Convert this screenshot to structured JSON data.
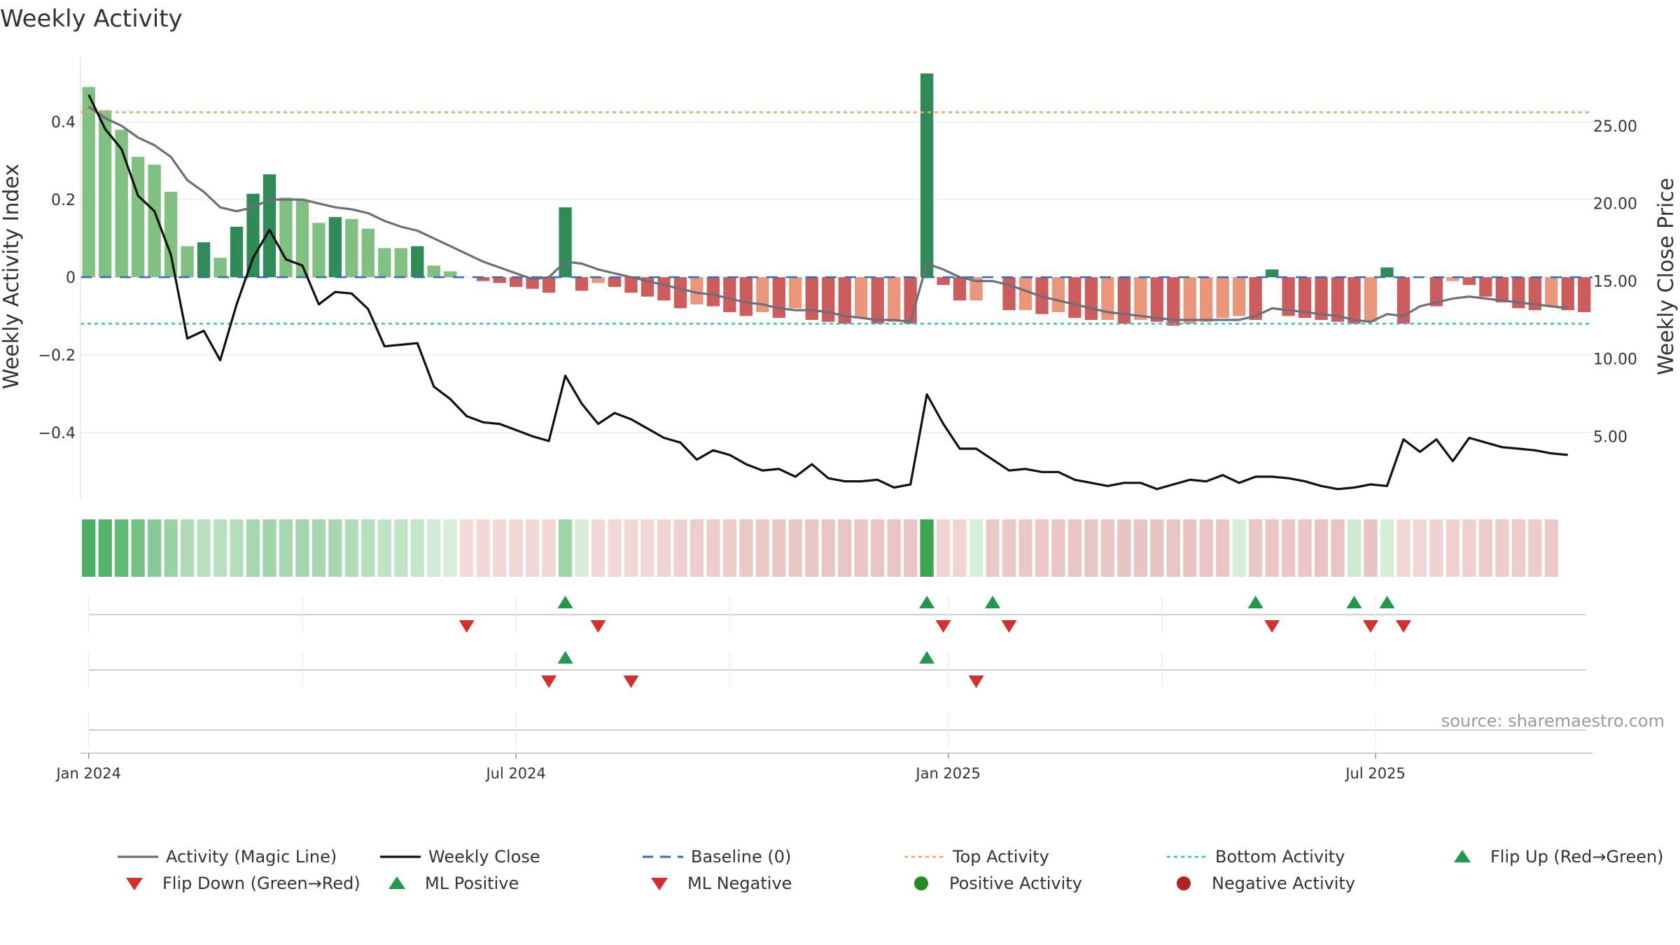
{
  "chart_data": {
    "type": "bar",
    "title": "Weekly Activity",
    "left_axis": {
      "label": "Weekly Activity Index",
      "ylim": [
        -0.57,
        0.57
      ],
      "ticks": [
        0.4,
        0.2,
        0,
        -0.2,
        -0.4
      ],
      "tick_labels": [
        "0.4",
        "0.2",
        "0",
        "−0.2",
        "−0.4"
      ]
    },
    "right_axis": {
      "label": "Weekly Close Price",
      "ylim": [
        1.0,
        29.5
      ],
      "ticks": [
        25,
        20,
        15,
        10,
        5
      ],
      "tick_labels": [
        "25.00",
        "20.00",
        "15.00",
        "10.00",
        "5.00"
      ]
    },
    "x_axis": {
      "start_label": "Jan 2024",
      "ticks": [
        {
          "label": "Jan 2024",
          "week": 0
        },
        {
          "label": "Jul 2024",
          "week": 26
        },
        {
          "label": "Jan 2025",
          "week": 52.3
        },
        {
          "label": "Jul 2025",
          "week": 78.3
        }
      ],
      "weeks": 90
    },
    "activity": [
      0.49,
      0.43,
      0.38,
      0.31,
      0.29,
      0.22,
      0.08,
      0.09,
      0.05,
      0.13,
      0.215,
      0.265,
      0.205,
      0.2,
      0.14,
      0.155,
      0.15,
      0.125,
      0.075,
      0.075,
      0.08,
      0.03,
      0.015,
      0.0,
      -0.01,
      -0.015,
      -0.025,
      -0.03,
      -0.04,
      0.18,
      -0.035,
      -0.015,
      -0.025,
      -0.04,
      -0.05,
      -0.06,
      -0.08,
      -0.07,
      -0.075,
      -0.09,
      -0.1,
      -0.09,
      -0.105,
      -0.08,
      -0.11,
      -0.115,
      -0.12,
      -0.105,
      -0.12,
      -0.115,
      -0.12,
      0.525,
      -0.02,
      -0.06,
      -0.06,
      0.0,
      -0.085,
      -0.085,
      -0.095,
      -0.09,
      -0.105,
      -0.11,
      -0.11,
      -0.12,
      -0.11,
      -0.115,
      -0.125,
      -0.12,
      -0.115,
      -0.105,
      -0.1,
      -0.11,
      0.02,
      -0.1,
      -0.105,
      -0.11,
      -0.115,
      -0.12,
      -0.115,
      0.025,
      -0.12,
      0.0,
      -0.075,
      -0.01,
      -0.02,
      -0.05,
      -0.065,
      -0.08,
      -0.085,
      -0.075,
      -0.085,
      -0.09
    ],
    "magic_line": [
      0.44,
      0.41,
      0.39,
      0.36,
      0.34,
      0.31,
      0.25,
      0.22,
      0.18,
      0.17,
      0.18,
      0.2,
      0.2,
      0.2,
      0.19,
      0.18,
      0.175,
      0.165,
      0.145,
      0.13,
      0.12,
      0.1,
      0.08,
      0.06,
      0.04,
      0.025,
      0.01,
      -0.005,
      0.0,
      0.04,
      0.035,
      0.02,
      0.01,
      0.0,
      -0.01,
      -0.02,
      -0.03,
      -0.04,
      -0.045,
      -0.055,
      -0.065,
      -0.07,
      -0.08,
      -0.085,
      -0.085,
      -0.09,
      -0.1,
      -0.105,
      -0.11,
      -0.11,
      -0.115,
      0.035,
      0.02,
      0.0,
      -0.01,
      -0.01,
      -0.02,
      -0.035,
      -0.05,
      -0.06,
      -0.07,
      -0.08,
      -0.09,
      -0.095,
      -0.1,
      -0.105,
      -0.11,
      -0.11,
      -0.11,
      -0.11,
      -0.11,
      -0.1,
      -0.08,
      -0.085,
      -0.09,
      -0.095,
      -0.1,
      -0.11,
      -0.115,
      -0.095,
      -0.1,
      -0.075,
      -0.065,
      -0.055,
      -0.05,
      -0.055,
      -0.06,
      -0.065,
      -0.07,
      -0.075,
      -0.08
    ],
    "weekly_close": [
      27.0,
      24.8,
      23.5,
      20.5,
      19.5,
      16.7,
      11.3,
      11.8,
      9.9,
      13.5,
      16.5,
      18.3,
      16.4,
      16.0,
      13.5,
      14.3,
      14.2,
      13.2,
      10.8,
      10.9,
      11.0,
      8.2,
      7.4,
      6.3,
      5.9,
      5.8,
      5.4,
      5.0,
      4.7,
      8.9,
      7.1,
      5.8,
      6.5,
      6.1,
      5.5,
      4.9,
      4.6,
      3.5,
      4.1,
      3.8,
      3.2,
      2.8,
      2.9,
      2.4,
      3.2,
      2.3,
      2.1,
      2.1,
      2.2,
      1.7,
      1.9,
      7.7,
      5.8,
      4.2,
      4.2,
      3.5,
      2.8,
      2.9,
      2.7,
      2.7,
      2.2,
      2.0,
      1.8,
      2.0,
      2.0,
      1.6,
      1.9,
      2.2,
      2.1,
      2.5,
      2.0,
      2.4,
      2.4,
      2.3,
      2.1,
      1.8,
      1.6,
      1.7,
      1.9,
      1.8,
      4.8,
      4.0,
      4.8,
      3.4,
      4.9,
      4.6,
      4.3,
      4.2,
      4.1,
      3.9,
      3.8
    ],
    "reference_lines": {
      "baseline": 0,
      "top_activity": 0.425,
      "bottom_activity": -0.12
    },
    "strip_colors": [
      "#4caf63",
      "#55b36b",
      "#5fb874",
      "#74c184",
      "#86c993",
      "#9ad2a5",
      "#aedbb6",
      "#b9e0c0",
      "#b9e0c0",
      "#b6dfbd",
      "#a7d7b0",
      "#a2d5ac",
      "#a7d7b0",
      "#a2d5ac",
      "#a7d7b0",
      "#a7d7b0",
      "#b1dcb9",
      "#b6dfbd",
      "#bfe3c5",
      "#c1e4c7",
      "#c6e6cb",
      "#d3ecd7",
      "#d9efdc",
      "#f5dada",
      "#f2d7d7",
      "#f2d7d7",
      "#f2d7d7",
      "#f2d7d7",
      "#f2d7d7",
      "#9fd3a9",
      "#d5edd9",
      "#f2d7d7",
      "#f2d7d7",
      "#f2d7d7",
      "#f2d7d7",
      "#f0d3d3",
      "#efd1d1",
      "#edcdcd",
      "#edcdcd",
      "#eccbcb",
      "#ebc9c9",
      "#ebc9c9",
      "#eac7c7",
      "#eac7c7",
      "#e9c5c5",
      "#e9c5c5",
      "#e9c5c5",
      "#e9c5c5",
      "#e9c5c5",
      "#e9c5c5",
      "#e9c5c5",
      "#3ea653",
      "#f0d3d3",
      "#f0d3d3",
      "#d8efdc",
      "#ecc9c9",
      "#ecc9c9",
      "#ebc7c7",
      "#ebc7c7",
      "#eac5c5",
      "#eac5c5",
      "#eac5c5",
      "#eac5c5",
      "#e9c4c4",
      "#e9c4c4",
      "#e9c4c4",
      "#e9c4c4",
      "#e9c4c4",
      "#e9c4c4",
      "#eac6c6",
      "#d5edd9",
      "#eac6c6",
      "#eac6c6",
      "#eac6c6",
      "#eac6c6",
      "#e9c4c4",
      "#e9c4c4",
      "#cfe9d3",
      "#e9c4c4",
      "#d5edd9",
      "#f2d6d6",
      "#f2d6d6",
      "#f0d2d2",
      "#efcfcf",
      "#efcfcf",
      "#edcbcb",
      "#edcbcb",
      "#edcbcb",
      "#edcbcb",
      "#ecc9c9"
    ],
    "flip_up": [
      29,
      51,
      55,
      71,
      77,
      79
    ],
    "flip_down": [
      23,
      31,
      52,
      56,
      72,
      78,
      80
    ],
    "ml_positive": [
      29,
      51
    ],
    "ml_negative": [
      28,
      33,
      54
    ],
    "legend": [
      {
        "label": "Activity (Magic Line)",
        "kind": "line",
        "color": "#6e6e78"
      },
      {
        "label": "Weekly Close",
        "kind": "line",
        "color": "#111111"
      },
      {
        "label": "Baseline (0)",
        "kind": "dash",
        "color": "#2f6fb7"
      },
      {
        "label": "Top Activity",
        "kind": "dot",
        "color": "#f2a25c"
      },
      {
        "label": "Bottom Activity",
        "kind": "dot",
        "color": "#27c3cf"
      },
      {
        "label": "Flip Up (Red→Green)",
        "kind": "up",
        "color": "#22994a"
      },
      {
        "label": "Flip Down (Green→Red)",
        "kind": "down",
        "color": "#d32f2f"
      },
      {
        "label": "ML Positive",
        "kind": "up",
        "color": "#22994a"
      },
      {
        "label": "ML Negative",
        "kind": "down",
        "color": "#d32f2f"
      },
      {
        "label": "Positive Activity",
        "kind": "circle",
        "color": "#228b22"
      },
      {
        "label": "Negative Activity",
        "kind": "circle",
        "color": "#b22222"
      }
    ],
    "source": "source: sharemaestro.com",
    "colors": {
      "bar_strong_green": "#2e8b57",
      "bar_light_green": "#80c080",
      "bar_strong_red": "#cd5c5c",
      "bar_light_red": "#e9967a",
      "magic_line": "#6e6e78",
      "close_line": "#111111",
      "baseline": "#2f6fb7",
      "top_line": "#f2a25c",
      "bottom_line": "#27c3cf",
      "flip_up": "#22994a",
      "flip_down": "#d32f2f"
    }
  }
}
